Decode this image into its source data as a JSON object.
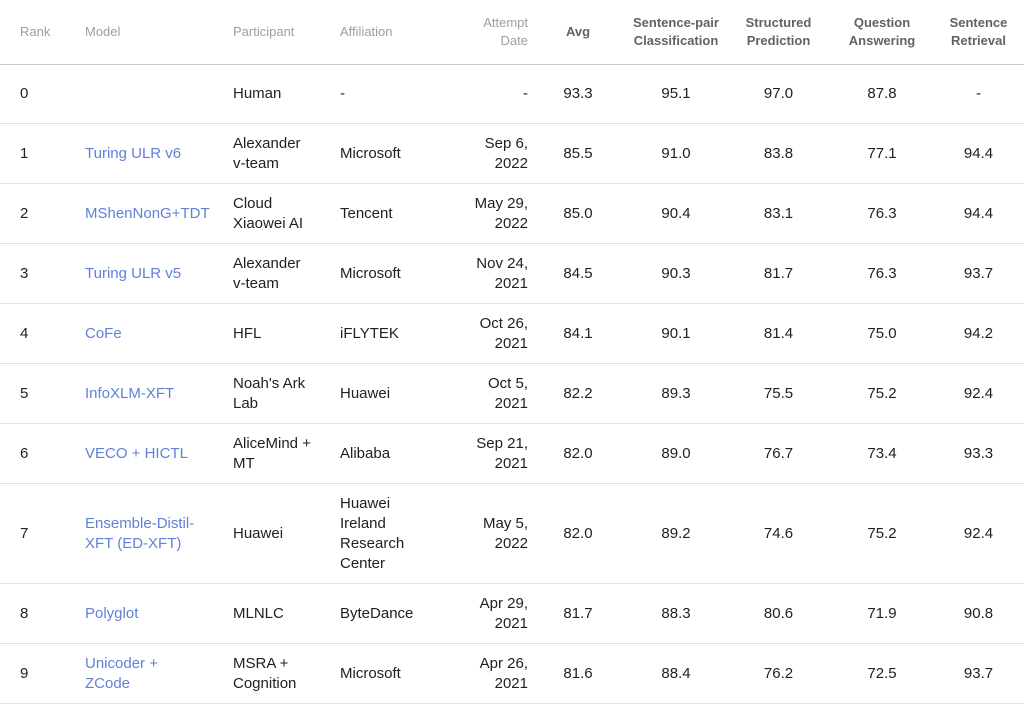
{
  "colors": {
    "link": "#6180d8",
    "body_text": "#202124",
    "header_muted": "#9e9e9e",
    "header_strong": "#5f6368",
    "row_border": "#e2e2e2",
    "header_border": "#c9c9c9",
    "background": "#ffffff"
  },
  "table": {
    "columns": [
      {
        "key": "rank",
        "label": "Rank",
        "align": "left",
        "bold": false
      },
      {
        "key": "model",
        "label": "Model",
        "align": "left",
        "bold": false
      },
      {
        "key": "participant",
        "label": "Participant",
        "align": "left",
        "bold": false
      },
      {
        "key": "affiliation",
        "label": "Affiliation",
        "align": "left",
        "bold": false
      },
      {
        "key": "date",
        "label": "Attempt Date",
        "align": "right",
        "bold": false
      },
      {
        "key": "avg",
        "label": "Avg",
        "align": "center",
        "bold": true
      },
      {
        "key": "spc",
        "label": "Sentence-pair Classification",
        "align": "center",
        "bold": true
      },
      {
        "key": "sp",
        "label": "Structured Prediction",
        "align": "center",
        "bold": true
      },
      {
        "key": "qa",
        "label": "Question Answering",
        "align": "center",
        "bold": true
      },
      {
        "key": "sr",
        "label": "Sentence Retrieval",
        "align": "center",
        "bold": true
      }
    ],
    "rows": [
      {
        "rank": "0",
        "model": "",
        "participant": "Human",
        "affiliation": "-",
        "date": "-",
        "avg": "93.3",
        "spc": "95.1",
        "sp": "97.0",
        "qa": "87.8",
        "sr": "-"
      },
      {
        "rank": "1",
        "model": "Turing ULR v6",
        "participant": "Alexander v-team",
        "affiliation": "Microsoft",
        "date": "Sep 6, 2022",
        "avg": "85.5",
        "spc": "91.0",
        "sp": "83.8",
        "qa": "77.1",
        "sr": "94.4"
      },
      {
        "rank": "2",
        "model": "MShenNonG+TDT",
        "participant": "Cloud Xiaowei AI",
        "affiliation": "Tencent",
        "date": "May 29, 2022",
        "avg": "85.0",
        "spc": "90.4",
        "sp": "83.1",
        "qa": "76.3",
        "sr": "94.4"
      },
      {
        "rank": "3",
        "model": "Turing ULR v5",
        "participant": "Alexander v-team",
        "affiliation": "Microsoft",
        "date": "Nov 24, 2021",
        "avg": "84.5",
        "spc": "90.3",
        "sp": "81.7",
        "qa": "76.3",
        "sr": "93.7"
      },
      {
        "rank": "4",
        "model": "CoFe",
        "participant": "HFL",
        "affiliation": "iFLYTEK",
        "date": "Oct 26, 2021",
        "avg": "84.1",
        "spc": "90.1",
        "sp": "81.4",
        "qa": "75.0",
        "sr": "94.2"
      },
      {
        "rank": "5",
        "model": "InfoXLM-XFT",
        "participant": "Noah's Ark Lab",
        "affiliation": "Huawei",
        "date": "Oct 5, 2021",
        "avg": "82.2",
        "spc": "89.3",
        "sp": "75.5",
        "qa": "75.2",
        "sr": "92.4"
      },
      {
        "rank": "6",
        "model": "VECO + HICTL",
        "participant": "AliceMind + MT",
        "affiliation": "Alibaba",
        "date": "Sep 21, 2021",
        "avg": "82.0",
        "spc": "89.0",
        "sp": "76.7",
        "qa": "73.4",
        "sr": "93.3"
      },
      {
        "rank": "7",
        "model": "Ensemble-Distil-XFT (ED-XFT)",
        "participant": "Huawei",
        "affiliation": "Huawei Ireland Research Center",
        "date": "May 5, 2022",
        "avg": "82.0",
        "spc": "89.2",
        "sp": "74.6",
        "qa": "75.2",
        "sr": "92.4"
      },
      {
        "rank": "8",
        "model": "Polyglot",
        "participant": "MLNLC",
        "affiliation": "ByteDance",
        "date": "Apr 29, 2021",
        "avg": "81.7",
        "spc": "88.3",
        "sp": "80.6",
        "qa": "71.9",
        "sr": "90.8"
      },
      {
        "rank": "9",
        "model": "Unicoder + ZCode",
        "participant": "MSRA + Cognition",
        "affiliation": "Microsoft",
        "date": "Apr 26, 2021",
        "avg": "81.6",
        "spc": "88.4",
        "sp": "76.2",
        "qa": "72.5",
        "sr": "93.7"
      }
    ]
  }
}
